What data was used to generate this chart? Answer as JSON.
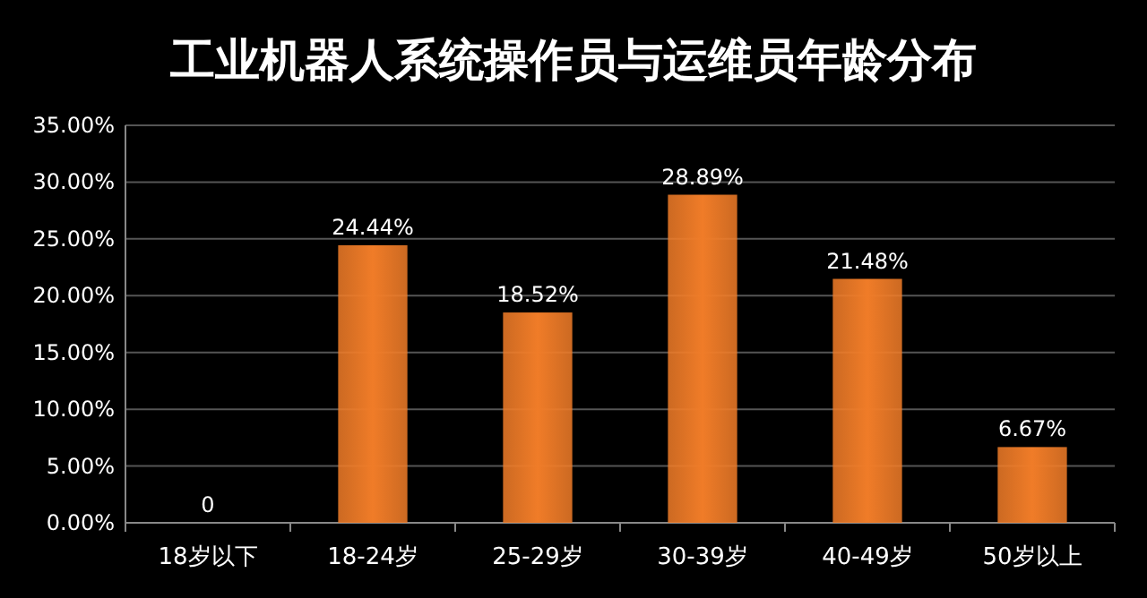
{
  "chart_data": {
    "type": "bar",
    "title": "工业机器人系统操作员与运维员年龄分布",
    "categories": [
      "18岁以下",
      "18-24岁",
      "25-29岁",
      "30-39岁",
      "40-49岁",
      "50岁以上"
    ],
    "values": [
      0,
      24.44,
      18.52,
      28.89,
      21.48,
      6.67
    ],
    "value_labels": [
      "0",
      "24.44%",
      "18.52%",
      "28.89%",
      "21.48%",
      "6.67%"
    ],
    "color": "#f07c28",
    "ylim": [
      0,
      35
    ],
    "yticks": [
      {
        "value": 0,
        "label": "0.00%"
      },
      {
        "value": 5,
        "label": "5.00%"
      },
      {
        "value": 10,
        "label": "10.00%"
      },
      {
        "value": 15,
        "label": "15.00%"
      },
      {
        "value": 20,
        "label": "20.00%"
      },
      {
        "value": 25,
        "label": "25.00%"
      },
      {
        "value": 30,
        "label": "30.00%"
      },
      {
        "value": 35,
        "label": "35.00%"
      }
    ],
    "grid": "y"
  }
}
